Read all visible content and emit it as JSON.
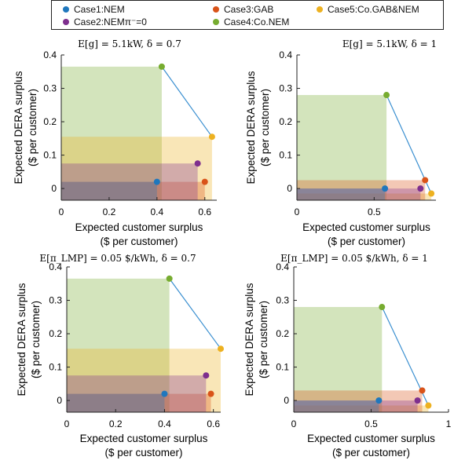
{
  "legend": {
    "items": [
      {
        "label": "Case1:NEM",
        "color": "#1f77bd"
      },
      {
        "label": "Case2:NEMπ⁻=0",
        "color": "#7e2f8e"
      },
      {
        "label": "Case3:GAB",
        "color": "#d95319"
      },
      {
        "label": "Case4:Co.NEM",
        "color": "#77ac30"
      },
      {
        "label": "Case5:Co.GAB&NEM",
        "color": "#edb120"
      }
    ]
  },
  "chart_data": [
    {
      "type": "scatter",
      "title": "E[g] = 5.1kW, δ = 0.7",
      "xlabel": [
        "Expected customer surplus",
        "($ per customer)"
      ],
      "ylabel": [
        "Expected DERA surplus",
        "($ per customer)"
      ],
      "xlim": [
        0,
        0.65
      ],
      "ylim": [
        -0.035,
        0.4
      ],
      "xticks": [
        0,
        0.2,
        0.4,
        0.6
      ],
      "xtick_labels": [
        "0",
        "0.2",
        "0.4",
        "0.6"
      ],
      "yticks": [
        0,
        0.1,
        0.2,
        0.3,
        0.4
      ],
      "ytick_labels": [
        "0",
        "0.1",
        "0.2",
        "0.3",
        "0.4"
      ],
      "points": [
        {
          "case": "Case1:NEM",
          "x": 0.4,
          "y": 0.02
        },
        {
          "case": "Case2:NEMπ⁻=0",
          "x": 0.57,
          "y": 0.075
        },
        {
          "case": "Case3:GAB",
          "x": 0.6,
          "y": 0.02
        },
        {
          "case": "Case4:Co.NEM",
          "x": 0.42,
          "y": 0.365
        },
        {
          "case": "Case5:Co.GAB&NEM",
          "x": 0.63,
          "y": 0.155
        }
      ],
      "frontier": [
        "Case4:Co.NEM",
        "Case5:Co.GAB&NEM"
      ],
      "grid": false
    },
    {
      "type": "scatter",
      "title": "E[g] = 5.1kW, δ = 1",
      "xlabel": [
        "Expected customer surplus",
        "($ per customer)"
      ],
      "ylabel": [
        "Expected DERA surplus",
        "($ per customer)"
      ],
      "xlim": [
        0,
        0.9
      ],
      "ylim": [
        -0.035,
        0.4
      ],
      "xticks": [
        0,
        0.5
      ],
      "xtick_labels": [
        "0",
        "0.5"
      ],
      "yticks": [
        0,
        0.1,
        0.2,
        0.3,
        0.4
      ],
      "ytick_labels": [
        "0",
        "0.1",
        "0.2",
        "0.3",
        "0.4"
      ],
      "points": [
        {
          "case": "Case1:NEM",
          "x": 0.57,
          "y": 0
        },
        {
          "case": "Case2:NEMπ⁻=0",
          "x": 0.8,
          "y": 0
        },
        {
          "case": "Case3:GAB",
          "x": 0.83,
          "y": 0.025
        },
        {
          "case": "Case4:Co.NEM",
          "x": 0.58,
          "y": 0.28
        },
        {
          "case": "Case5:Co.GAB&NEM",
          "x": 0.87,
          "y": -0.015
        }
      ],
      "frontier": [
        "Case4:Co.NEM",
        "Case5:Co.GAB&NEM"
      ],
      "grid": false
    },
    {
      "type": "scatter",
      "title": "E[π_LMP] = 0.05 $/kWh, δ = 0.7",
      "xlabel": [
        "Expected customer surplus",
        "($ per customer)"
      ],
      "ylabel": [
        "Expected DERA surplus",
        "($ per customer)"
      ],
      "xlim": [
        0,
        0.63
      ],
      "ylim": [
        -0.035,
        0.4
      ],
      "xticks": [
        0,
        0.2,
        0.4,
        0.6
      ],
      "xtick_labels": [
        "0",
        "0.2",
        "0.4",
        "0.6"
      ],
      "yticks": [
        0,
        0.1,
        0.2,
        0.3,
        0.4
      ],
      "ytick_labels": [
        "0",
        "0.1",
        "0.2",
        "0.3",
        "0.4"
      ],
      "points": [
        {
          "case": "Case1:NEM",
          "x": 0.4,
          "y": 0.02
        },
        {
          "case": "Case2:NEMπ⁻=0",
          "x": 0.57,
          "y": 0.075
        },
        {
          "case": "Case3:GAB",
          "x": 0.59,
          "y": 0.02
        },
        {
          "case": "Case4:Co.NEM",
          "x": 0.42,
          "y": 0.365
        },
        {
          "case": "Case5:Co.GAB&NEM",
          "x": 0.63,
          "y": 0.155
        }
      ],
      "frontier": [
        "Case4:Co.NEM",
        "Case5:Co.GAB&NEM"
      ],
      "grid": false
    },
    {
      "type": "scatter",
      "title": "E[π_LMP] = 0.05 $/kWh, δ = 1",
      "xlabel": [
        "Expected customer surplus",
        "($ per customer)"
      ],
      "ylabel": [
        "Expected DERA surplus",
        "($ per customer)"
      ],
      "xlim": [
        0,
        1.0
      ],
      "ylim": [
        -0.035,
        0.4
      ],
      "xticks": [
        0,
        0.5,
        1
      ],
      "xtick_labels": [
        "0",
        "0.5",
        "1"
      ],
      "yticks": [
        0,
        0.1,
        0.2,
        0.3,
        0.4
      ],
      "ytick_labels": [
        "0",
        "0.1",
        "0.2",
        "0.3",
        "0.4"
      ],
      "points": [
        {
          "case": "Case1:NEM",
          "x": 0.55,
          "y": 0
        },
        {
          "case": "Case2:NEMπ⁻=0",
          "x": 0.8,
          "y": 0
        },
        {
          "case": "Case3:GAB",
          "x": 0.83,
          "y": 0.03
        },
        {
          "case": "Case4:Co.NEM",
          "x": 0.57,
          "y": 0.28
        },
        {
          "case": "Case5:Co.GAB&NEM",
          "x": 0.87,
          "y": -0.015
        }
      ],
      "frontier": [
        "Case4:Co.NEM",
        "Case5:Co.GAB&NEM"
      ],
      "grid": false
    }
  ]
}
